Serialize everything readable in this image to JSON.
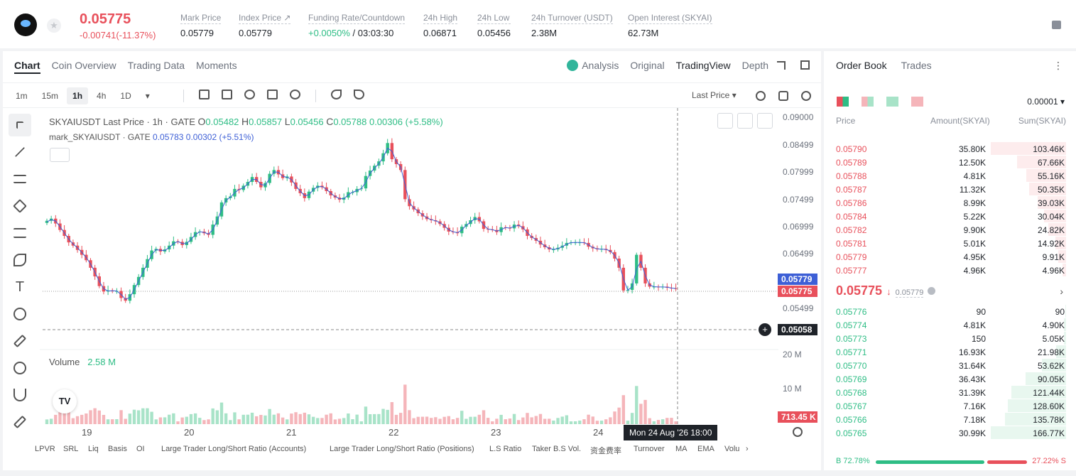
{
  "header": {
    "last_price": "0.05775",
    "change": "-0.00741(-11.37%)",
    "stats": [
      {
        "label": "Mark Price",
        "value": "0.05779"
      },
      {
        "label": "Index Price ↗",
        "value": "0.05779"
      },
      {
        "label": "Funding Rate/Countdown",
        "value_up": "+0.0050%",
        "value": " / 03:03:30"
      },
      {
        "label": "24h High",
        "value": "0.06871"
      },
      {
        "label": "24h Low",
        "value": "0.05456"
      },
      {
        "label": "24h Turnover (USDT)",
        "value": "2.38M"
      },
      {
        "label": "Open Interest (SKYAI)",
        "value": "62.73M"
      }
    ]
  },
  "chart_panel": {
    "tabs": [
      "Chart",
      "Coin Overview",
      "Trading Data",
      "Moments"
    ],
    "modes": [
      "Analysis",
      "Original",
      "TradingView",
      "Depth"
    ],
    "intervals": [
      "1m",
      "15m",
      "1h",
      "4h",
      "1D"
    ],
    "selected_interval": "1h",
    "price_type": "Last Price",
    "legend": {
      "symbol": "SKYAIUSDT Last Price · 1h · GATE",
      "o_label": "O",
      "o": "0.05482",
      "h_label": "H",
      "h": "0.05857",
      "l_label": "L",
      "l": "0.05456",
      "c_label": "C",
      "c": "0.05788",
      "chg": "0.00306 (+5.58%)",
      "mark_label": "mark_SKYAIUSDT · GATE",
      "mark_value": "0.05783",
      "mark_chg": "0.00302 (+5.51%)"
    },
    "volume_label": "Volume",
    "volume_value": "2.58 M",
    "y_ticks": [
      "0.09000",
      "0.08499",
      "0.07999",
      "0.07499",
      "0.06999",
      "0.06499",
      "0.05499"
    ],
    "vol_ticks": [
      "20 M",
      "10 M"
    ],
    "price_tags": {
      "mark": "0.05779",
      "last": "0.05775",
      "cross": "0.05058",
      "vol": "713.45 K"
    },
    "x_labels": [
      "19",
      "20",
      "21",
      "22",
      "23",
      "24"
    ],
    "crosshair_time": "Mon 24 Aug '26   18:00",
    "indicators": [
      "LPVR",
      "SRL",
      "Liq",
      "Basis",
      "OI",
      "Large Trader Long/Short Ratio (Accounts)",
      "Large Trader Long/Short Ratio (Positions)",
      "L.S Ratio",
      "Taker B.S Vol.",
      "资金费率",
      "Turnover",
      "MA",
      "EMA",
      "Volu"
    ],
    "colors": {
      "up": "#2ebd85",
      "down": "#e8505b",
      "mark_line": "#3d5fd6"
    }
  },
  "chart_data": {
    "type": "candlestick",
    "x_labels": [
      "19",
      "20",
      "21",
      "22",
      "23",
      "24"
    ],
    "ylim": [
      0.0505,
      0.0905
    ],
    "closes": [
      0.0704,
      0.0708,
      0.0699,
      0.0687,
      0.0676,
      0.0664,
      0.0658,
      0.065,
      0.0641,
      0.0631,
      0.0617,
      0.0601,
      0.0583,
      0.0573,
      0.0575,
      0.0574,
      0.0574,
      0.0561,
      0.0556,
      0.0568,
      0.0585,
      0.06,
      0.0617,
      0.0633,
      0.0649,
      0.0652,
      0.0647,
      0.0651,
      0.0658,
      0.0666,
      0.0665,
      0.0659,
      0.0665,
      0.0674,
      0.0683,
      0.0684,
      0.0681,
      0.0678,
      0.0697,
      0.0712,
      0.0738,
      0.0746,
      0.0749,
      0.0763,
      0.0761,
      0.0769,
      0.0776,
      0.0785,
      0.0776,
      0.0766,
      0.0774,
      0.0791,
      0.0798,
      0.079,
      0.0783,
      0.0786,
      0.0775,
      0.0763,
      0.0755,
      0.0746,
      0.0758,
      0.0765,
      0.0769,
      0.0766,
      0.0759,
      0.0751,
      0.0747,
      0.0743,
      0.0747,
      0.0757,
      0.0757,
      0.0763,
      0.0764,
      0.0787,
      0.0797,
      0.0806,
      0.0814,
      0.0829,
      0.0848,
      0.0818,
      0.0809,
      0.0798,
      0.0744,
      0.0731,
      0.0725,
      0.0718,
      0.0712,
      0.0707,
      0.0705,
      0.0703,
      0.0698,
      0.0691,
      0.0684,
      0.0683,
      0.0681,
      0.0693,
      0.0698,
      0.0705,
      0.0711,
      0.0703,
      0.0689,
      0.0688,
      0.0687,
      0.0683,
      0.0692,
      0.0691,
      0.069,
      0.0697,
      0.0694,
      0.0688,
      0.0676,
      0.0672,
      0.0667,
      0.066,
      0.0655,
      0.0651,
      0.0651,
      0.0654,
      0.0658,
      0.0663,
      0.0664,
      0.0664,
      0.0664,
      0.0663,
      0.0656,
      0.0653,
      0.0651,
      0.0652,
      0.065,
      0.0646,
      0.0634,
      0.0617,
      0.0575,
      0.0576,
      0.0588,
      0.0641,
      0.0617,
      0.0588,
      0.0582,
      0.0582,
      0.0581,
      0.0582,
      0.058,
      0.0579,
      0.0578
    ]
  },
  "order_book": {
    "tabs": [
      "Order Book",
      "Trades"
    ],
    "precision": "0.00001",
    "headers": {
      "price": "Price",
      "amount": "Amount(SKYAI)",
      "sum": "Sum(SKYAI)"
    },
    "asks": [
      {
        "price": "0.05790",
        "amount": "35.80K",
        "sum": "103.46K",
        "depth": 1.0
      },
      {
        "price": "0.05789",
        "amount": "12.50K",
        "sum": "67.66K",
        "depth": 0.65
      },
      {
        "price": "0.05788",
        "amount": "4.81K",
        "sum": "55.16K",
        "depth": 0.53
      },
      {
        "price": "0.05787",
        "amount": "11.32K",
        "sum": "50.35K",
        "depth": 0.49
      },
      {
        "price": "0.05786",
        "amount": "8.99K",
        "sum": "39.03K",
        "depth": 0.38
      },
      {
        "price": "0.05784",
        "amount": "5.22K",
        "sum": "30.04K",
        "depth": 0.29
      },
      {
        "price": "0.05782",
        "amount": "9.90K",
        "sum": "24.82K",
        "depth": 0.24
      },
      {
        "price": "0.05781",
        "amount": "5.01K",
        "sum": "14.92K",
        "depth": 0.14
      },
      {
        "price": "0.05779",
        "amount": "4.95K",
        "sum": "9.91K",
        "depth": 0.1
      },
      {
        "price": "0.05777",
        "amount": "4.96K",
        "sum": "4.96K",
        "depth": 0.05
      }
    ],
    "mid_price": "0.05775",
    "mid_mark": "0.05779",
    "bids": [
      {
        "price": "0.05776",
        "amount": "90",
        "sum": "90",
        "depth": 0.01
      },
      {
        "price": "0.05774",
        "amount": "4.81K",
        "sum": "4.90K",
        "depth": 0.03
      },
      {
        "price": "0.05773",
        "amount": "150",
        "sum": "5.05K",
        "depth": 0.03
      },
      {
        "price": "0.05771",
        "amount": "16.93K",
        "sum": "21.98K",
        "depth": 0.13
      },
      {
        "price": "0.05770",
        "amount": "31.64K",
        "sum": "53.62K",
        "depth": 0.32
      },
      {
        "price": "0.05769",
        "amount": "36.43K",
        "sum": "90.05K",
        "depth": 0.54
      },
      {
        "price": "0.05768",
        "amount": "31.39K",
        "sum": "121.44K",
        "depth": 0.73
      },
      {
        "price": "0.05767",
        "amount": "7.16K",
        "sum": "128.60K",
        "depth": 0.77
      },
      {
        "price": "0.05766",
        "amount": "7.18K",
        "sum": "135.78K",
        "depth": 0.81
      },
      {
        "price": "0.05765",
        "amount": "30.99K",
        "sum": "166.77K",
        "depth": 1.0
      }
    ],
    "buy_ratio": "B 72.78%",
    "sell_ratio": "27.22% S"
  }
}
